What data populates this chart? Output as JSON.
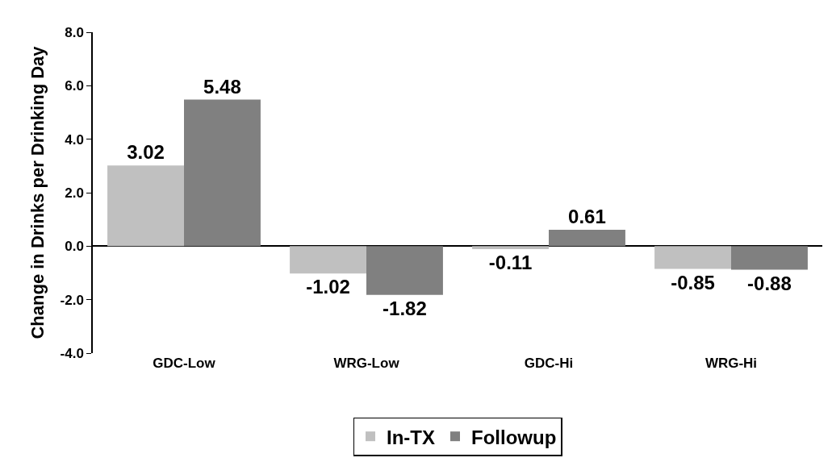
{
  "chart_data": {
    "type": "bar",
    "ylabel": "Change in Drinks per Drinking Day",
    "categories": [
      "GDC-Low",
      "WRG-Low",
      "GDC-Hi",
      "WRG-Hi"
    ],
    "series": [
      {
        "name": "In-TX",
        "color": "#c0c0c0",
        "values": [
          3.02,
          -1.02,
          -0.11,
          -0.85
        ]
      },
      {
        "name": "Followup",
        "color": "#808080",
        "values": [
          5.48,
          -1.82,
          0.61,
          -0.88
        ]
      }
    ],
    "ylim": [
      -4,
      8
    ],
    "yticks": [
      {
        "value": -4,
        "label": "-4.0"
      },
      {
        "value": -2,
        "label": "-2.0"
      },
      {
        "value": 0,
        "label": "0.0"
      },
      {
        "value": 2,
        "label": "2.0"
      },
      {
        "value": 4,
        "label": "4.0"
      },
      {
        "value": 6,
        "label": "6.0"
      },
      {
        "value": 8,
        "label": "8.0"
      }
    ],
    "data_labels": true,
    "legend": "bottom"
  }
}
